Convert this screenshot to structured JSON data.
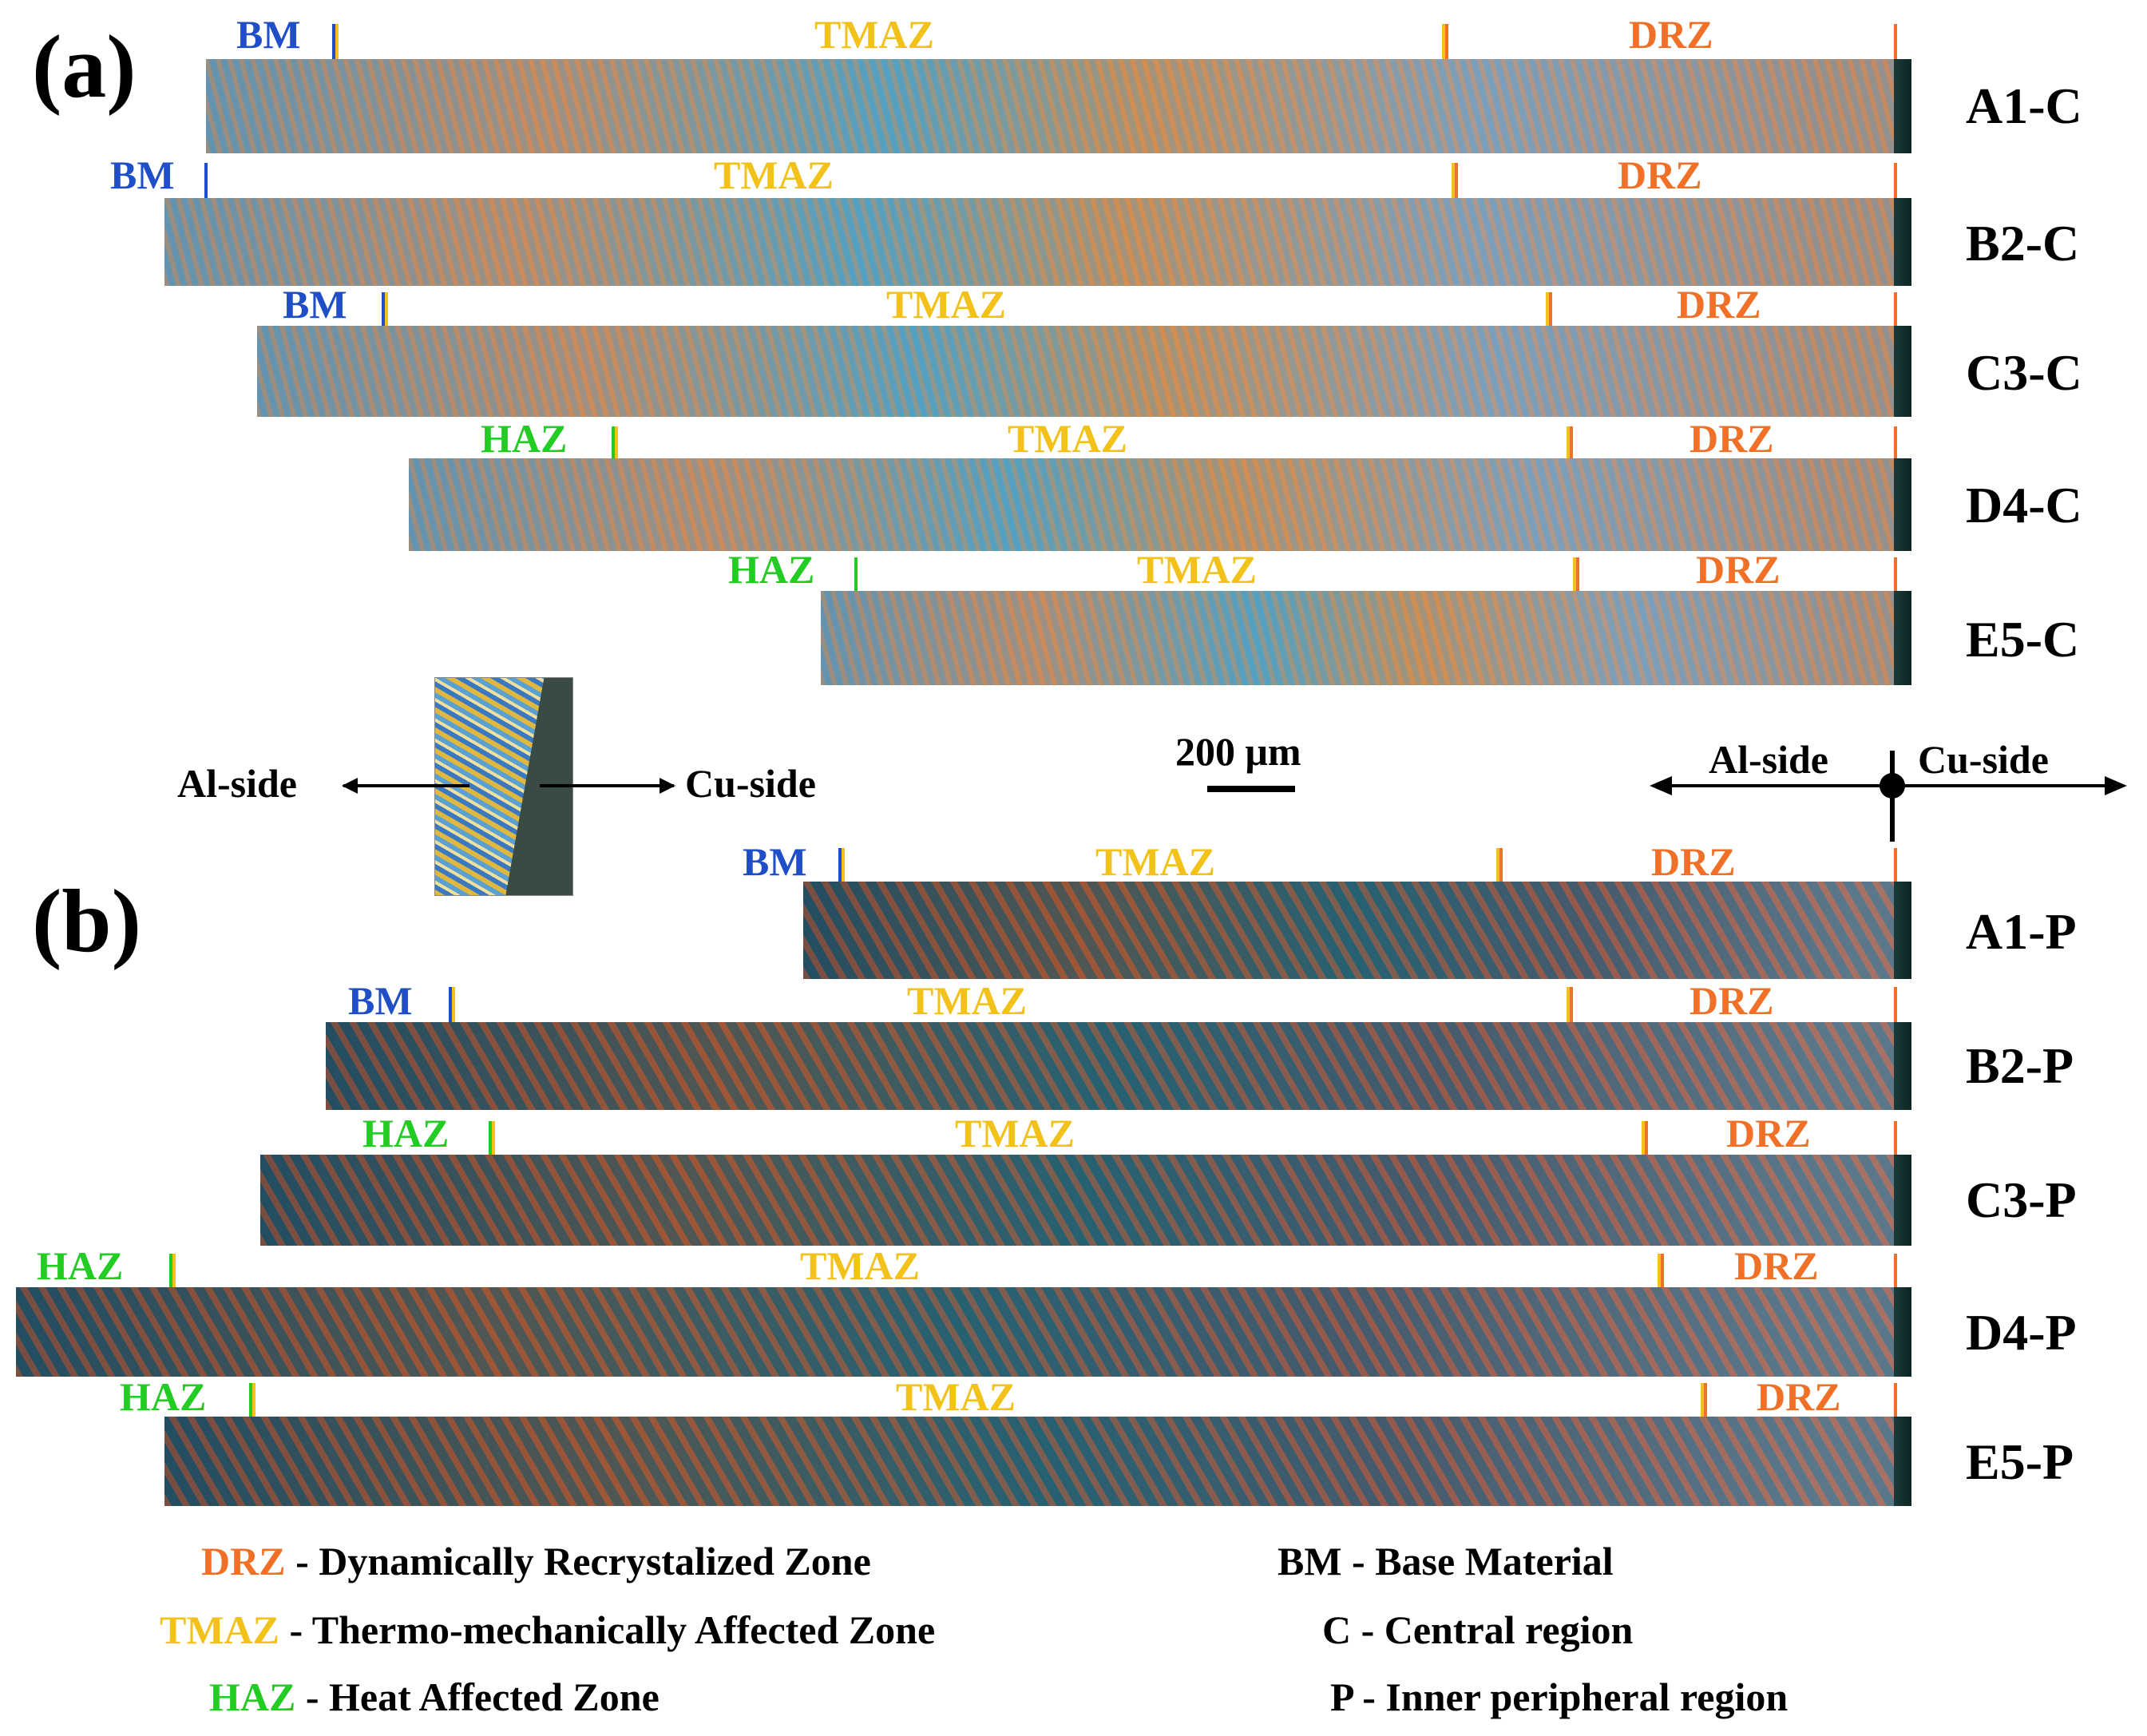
{
  "panels": {
    "a": "(a)",
    "b": "(b)"
  },
  "zones": {
    "bm": "BM",
    "tmaz": "TMAZ",
    "drz": "DRZ",
    "haz": "HAZ"
  },
  "rows_a": [
    "A1-C",
    "B2-C",
    "C3-C",
    "D4-C",
    "E5-C"
  ],
  "rows_b": [
    "A1-P",
    "B2-P",
    "C3-P",
    "D4-P",
    "E5-P"
  ],
  "inset": {
    "al_side": "Al-side",
    "cu_side": "Cu-side"
  },
  "scale_bar": "200 μm",
  "axis": {
    "al_side": "Al-side",
    "cu_side": "Cu-side"
  },
  "legend": {
    "drz_abbr": "DRZ",
    "drz_text": "- Dynamically Recrystalized Zone",
    "tmaz_abbr": "TMAZ",
    "tmaz_text": "- Thermo-mechanically Affected Zone",
    "haz_abbr": "HAZ",
    "haz_text": "- Heat Affected Zone",
    "bm_text": "BM - Base Material",
    "c_text": "C - Central region",
    "p_text": "P - Inner peripheral region"
  },
  "colors": {
    "bm": "#1f4ec8",
    "tmaz": "#f2c21a",
    "drz": "#f07028",
    "haz": "#22cc22"
  }
}
